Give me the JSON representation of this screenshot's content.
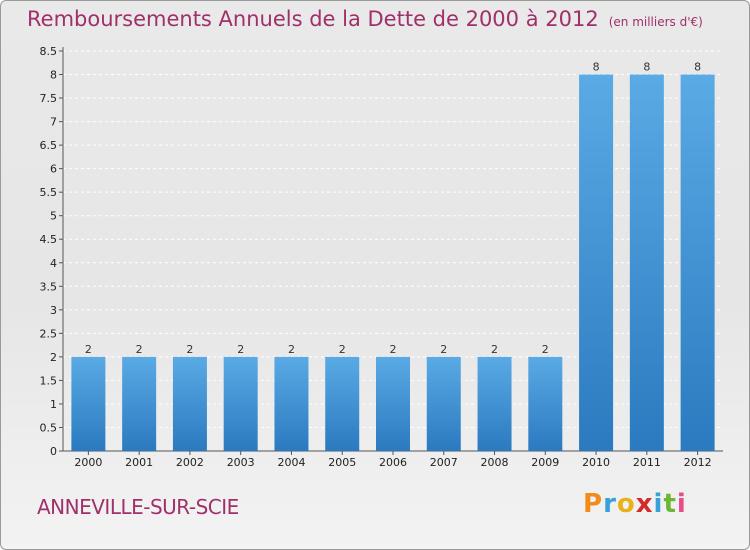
{
  "title": "Remboursements Annuels de la Dette de 2000 à 2012",
  "subtitle": "(en milliers d'€)",
  "commune": "ANNEVILLE-SUR-SCIE",
  "logo": {
    "letters": [
      "P",
      "r",
      "o",
      "x",
      "i",
      "t",
      "i"
    ],
    "colors": [
      "#f28a1c",
      "#3aa0d8",
      "#e8b21c",
      "#d42a2a",
      "#3aa0d8",
      "#6bb634",
      "#e84c8a"
    ]
  },
  "colors": {
    "bar": "#3d8fd4",
    "bar_light": "#5aaae5",
    "bar_dark": "#2b7ac0",
    "title": "#a0306a"
  },
  "chart_data": {
    "type": "bar",
    "categories": [
      "2000",
      "2001",
      "2002",
      "2003",
      "2004",
      "2005",
      "2006",
      "2007",
      "2008",
      "2009",
      "2010",
      "2011",
      "2012"
    ],
    "values": [
      2,
      2,
      2,
      2,
      2,
      2,
      2,
      2,
      2,
      2,
      8,
      8,
      8
    ],
    "data_labels": [
      "2",
      "2",
      "2",
      "2",
      "2",
      "2",
      "2",
      "2",
      "2",
      "2",
      "8",
      "8",
      "8"
    ],
    "y_ticks": [
      "0",
      "0.5",
      "1",
      "1.5",
      "2",
      "2.5",
      "3",
      "3.5",
      "4",
      "4.5",
      "5",
      "5.5",
      "6",
      "6.5",
      "7",
      "7.5",
      "8",
      "8.5"
    ],
    "ylim": [
      0,
      8.5
    ],
    "grid": true,
    "legend": "none"
  }
}
